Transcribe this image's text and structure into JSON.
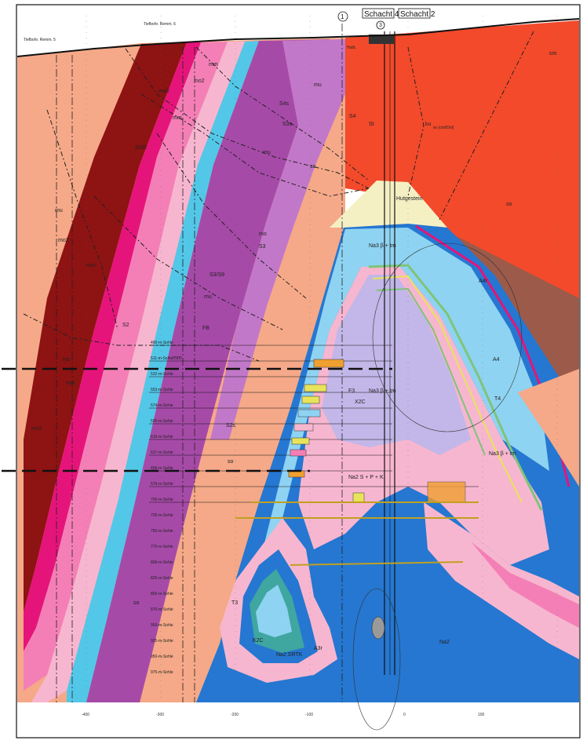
{
  "header": {
    "shaft_a": "Schacht 4",
    "shaft_b": "Schacht 2",
    "circle_1": "1",
    "circle_3": "3",
    "circle_2": "2",
    "top_left_a": "Tiefbohr. Remm. 5",
    "top_left_b": "Tiefbohr. Remm. 6"
  },
  "units": {
    "sm": "sm",
    "so_right": "so",
    "so_left": "so",
    "so_mid": "so",
    "so_lower": "so",
    "so_vertical": "so (clst/Dol)",
    "mu_top": "mu",
    "mu_mid": "mu",
    "mu_mid2": "mu",
    "mu_left": "mu",
    "mu_top2": "mu",
    "mo_a": "mo",
    "mo2_a": "mo2",
    "mo2_b": "mo2",
    "mo2_c": "mo2",
    "mo2_d": "mo2",
    "mm_a": "mm",
    "mm_b": "mm",
    "mm_c": "mm",
    "mm_d": "mm",
    "mm_e": "mm",
    "ku": "ku",
    "hutgestein": "Hutgestein",
    "na3_tm": "Na3 β + tm",
    "na3_tm2": "Na3 β + tm",
    "na3_lower": "Na3 β + tm",
    "na2_s": "Na2 S + P + K",
    "na2": "Na2",
    "na2_srtk": "Na2 SRTK",
    "a4": "A4",
    "a4r": "A4r",
    "t4": "T4",
    "t3": "T3",
    "a3r": "A3r",
    "k2c": "K2C",
    "x2c": "X2C",
    "f3": "F3",
    "s2": "S2",
    "s2s": "S2s",
    "s3": "S3",
    "s3s": "S3s",
    "s4": "S4",
    "s4s": "S4s",
    "sso": "SSO",
    "ssg": "S3/S9",
    "st": "St",
    "fb": "FB",
    "hutb": "Hutb."
  },
  "levels": [
    "490-m-Sohle",
    "511-m-Sohle",
    "532-m-Sohle",
    "553-m-Sohle",
    "574-m-Sohle",
    "595-m-Sohle",
    "616-m-Sohle",
    "637-m-Sohle",
    "658-m-Sohle",
    "679-m-Sohle",
    "700-m-Sohle",
    "725-m-Sohle",
    "750-m-Sohle",
    "775-m-Sohle",
    "800-m-Sohle",
    "825-m-Sohle",
    "850-m-Sohle",
    "875-m-Sohle",
    "900-m-Sohle",
    "925-m-Sohle",
    "950-m-Sohle",
    "975-m-Sohle"
  ],
  "bottom_ticks": [
    "-400",
    "-300",
    "-200",
    "-100",
    "0",
    "100"
  ],
  "colors": {
    "orange_red": "#f24a2b",
    "salmon": "#f5a988",
    "dark_red": "#8e1313",
    "magenta": "#e5147a",
    "pink": "#f47fb6",
    "light_pink": "#f7b6cf",
    "purple": "#a64aa8",
    "violet": "#c278c8",
    "cyan": "#53c7e8",
    "light_blue": "#8fd3f2",
    "blue": "#2577d1",
    "lavender": "#c2b7e8",
    "cream": "#f5f0c4",
    "yellow": "#e8e35a",
    "green": "#7fc47a",
    "teal": "#3fa6a0",
    "brown": "#9c5a4a",
    "dashed": "#222222"
  }
}
